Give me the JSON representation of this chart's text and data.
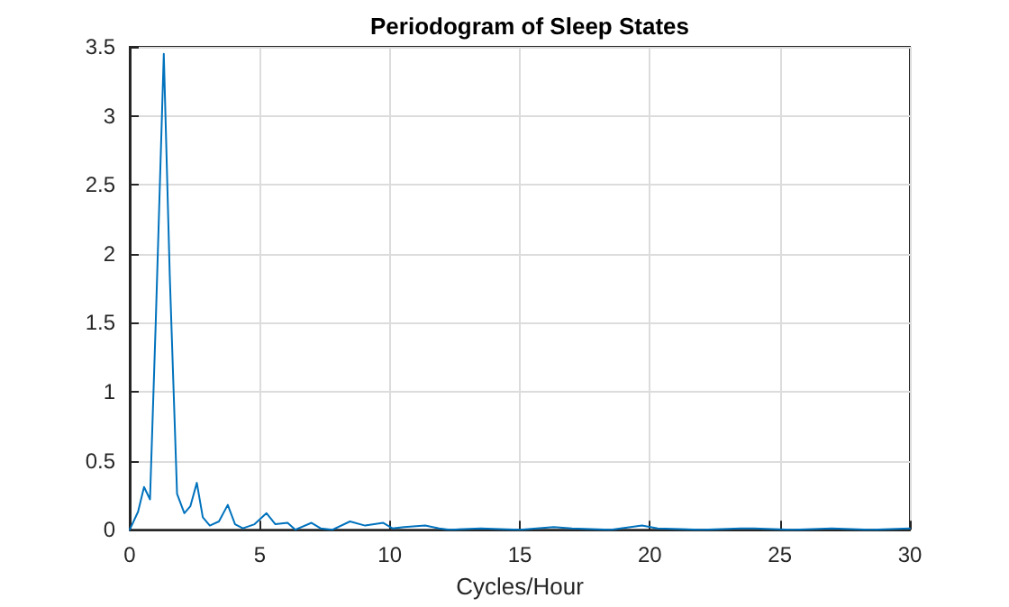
{
  "chart_data": {
    "type": "line",
    "title": "Periodogram of Sleep States",
    "xlabel": "Cycles/Hour",
    "x": [
      0,
      0.32,
      0.55,
      0.78,
      1.0,
      1.31,
      1.54,
      1.82,
      2.1,
      2.33,
      2.58,
      2.81,
      3.08,
      3.43,
      3.77,
      4.05,
      4.35,
      4.8,
      5.26,
      5.6,
      6.07,
      6.37,
      6.99,
      7.34,
      7.8,
      8.47,
      9.05,
      9.75,
      10.1,
      10.55,
      11.36,
      11.9,
      12.3,
      13.5,
      15,
      16.3,
      17,
      18.5,
      19.7,
      20.3,
      22,
      23.5,
      24,
      25.5,
      27,
      28.5,
      30
    ],
    "series": [
      {
        "color": "#0072bd",
        "values": [
          0,
          0.13,
          0.31,
          0.22,
          1.5,
          3.45,
          1.84,
          0.26,
          0.12,
          0.17,
          0.34,
          0.09,
          0.03,
          0.06,
          0.18,
          0.04,
          0.01,
          0.04,
          0.12,
          0.04,
          0.05,
          0,
          0.05,
          0.01,
          0,
          0.06,
          0.03,
          0.05,
          0.01,
          0.02,
          0.03,
          0.01,
          0,
          0.01,
          0,
          0.02,
          0.01,
          0,
          0.03,
          0.01,
          0,
          0.01,
          0.01,
          0,
          0.01,
          0,
          0.01
        ]
      }
    ],
    "xlim": [
      0,
      30
    ],
    "xticks": [
      0,
      5,
      10,
      15,
      20,
      25,
      30
    ],
    "ylim": [
      0,
      3.5
    ],
    "yticks": [
      0,
      0.5,
      1,
      1.5,
      2,
      2.5,
      3,
      3.5
    ],
    "grid": true,
    "marker": "none",
    "line_style": "solid"
  }
}
